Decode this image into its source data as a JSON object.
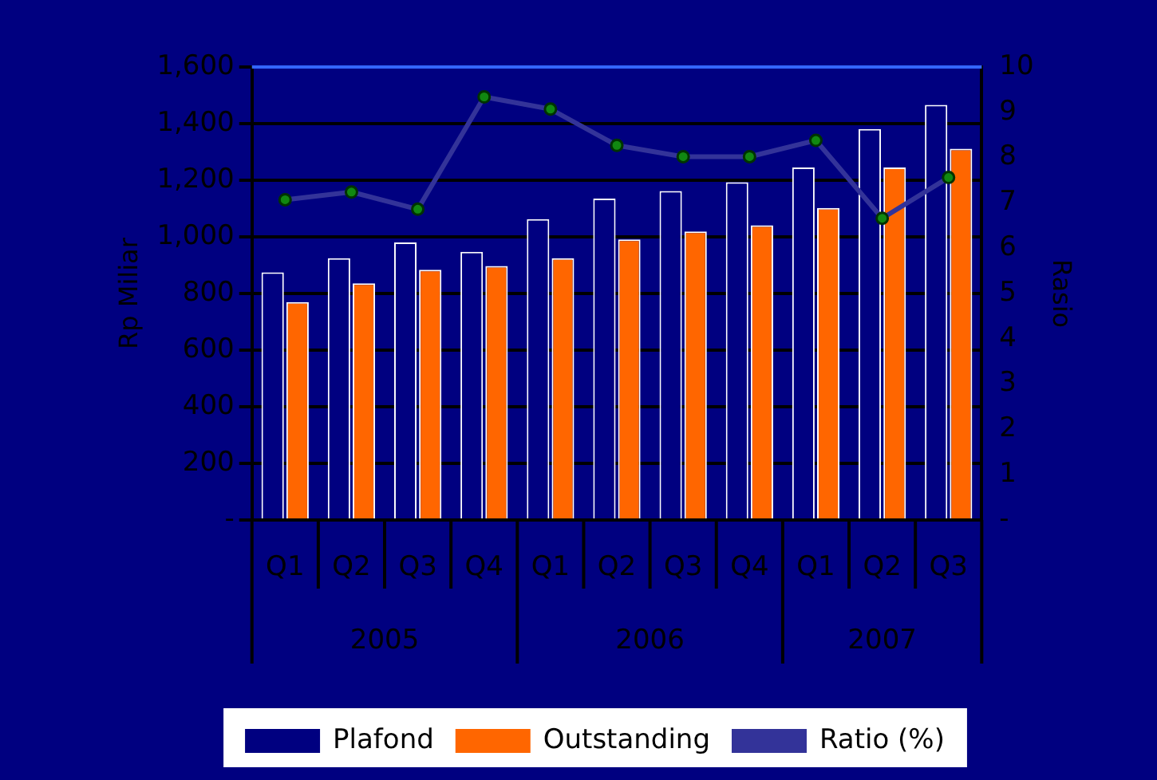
{
  "chart_data": {
    "type": "bar",
    "xlabel": null,
    "ylabel": "Rp Miliar",
    "y2label": "Rasio",
    "categories": [
      "Q1",
      "Q2",
      "Q3",
      "Q4",
      "Q1",
      "Q2",
      "Q3",
      "Q4",
      "Q1",
      "Q2",
      "Q3"
    ],
    "annotations": [
      "2005",
      "2006",
      "2007"
    ],
    "series": [
      {
        "name": "Plafond",
        "color": "#000080",
        "values": [
          875,
          925,
          980,
          947,
          1063,
          1135,
          1162,
          1193,
          1245,
          1381,
          1466
        ]
      },
      {
        "name": "Outstanding",
        "color": "#ff6600",
        "values": [
          770,
          836,
          884,
          897,
          925,
          991,
          1019,
          1041,
          1102,
          1245,
          1311
        ]
      },
      {
        "name": "Ratio (%)",
        "type": "line",
        "axis": "y2",
        "color": "#333399",
        "marker": "circle",
        "values": [
          7.07,
          7.24,
          6.86,
          9.34,
          9.07,
          8.27,
          8.02,
          8.02,
          8.38,
          6.66,
          7.56
        ]
      }
    ],
    "ylim": [
      0,
      1600
    ],
    "yticks": [
      {
        "value": 0,
        "label": "-"
      },
      {
        "value": 200,
        "label": "200"
      },
      {
        "value": 400,
        "label": "400"
      },
      {
        "value": 600,
        "label": "600"
      },
      {
        "value": 800,
        "label": "800"
      },
      {
        "value": 1000,
        "label": "1,000"
      },
      {
        "value": 1200,
        "label": "1,200"
      },
      {
        "value": 1400,
        "label": "1,400"
      },
      {
        "value": 1600,
        "label": "1,600"
      }
    ],
    "y2lim": [
      0,
      10
    ],
    "y2ticks": [
      {
        "value": 0,
        "label": "-"
      },
      1,
      2,
      3,
      4,
      5,
      6,
      7,
      8,
      9,
      10
    ],
    "grid": "y",
    "legend": "bottom"
  }
}
